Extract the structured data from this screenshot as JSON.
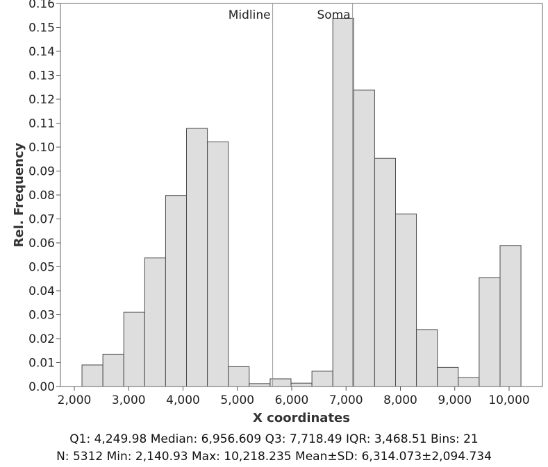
{
  "chart_data": {
    "type": "bar",
    "xlabel": "X coordinates",
    "ylabel": "Rel. Frequency",
    "xlim": [
      2140.93,
      10218.235
    ],
    "ylim": [
      0,
      0.16
    ],
    "x_ticks": [
      2000,
      3000,
      4000,
      5000,
      6000,
      7000,
      8000,
      9000,
      10000
    ],
    "x_tick_labels": [
      "2,000",
      "3,000",
      "4,000",
      "5,000",
      "6,000",
      "7,000",
      "8,000",
      "9,000",
      "10,000"
    ],
    "y_ticks": [
      0.0,
      0.01,
      0.02,
      0.03,
      0.04,
      0.05,
      0.06,
      0.07,
      0.08,
      0.09,
      0.1,
      0.11,
      0.12,
      0.13,
      0.14,
      0.15,
      0.16
    ],
    "y_tick_labels": [
      "0.00",
      "0.01",
      "0.02",
      "0.03",
      "0.04",
      "0.05",
      "0.06",
      "0.07",
      "0.08",
      "0.09",
      "0.10",
      "0.11",
      "0.12",
      "0.13",
      "0.14",
      "0.15",
      "0.16"
    ],
    "bins": 21,
    "bin_start": 2140.93,
    "bin_end": 10218.235,
    "values": [
      0.009,
      0.0135,
      0.031,
      0.0537,
      0.0798,
      0.1078,
      0.1022,
      0.0083,
      0.0012,
      0.0032,
      0.0014,
      0.0064,
      0.1538,
      0.1238,
      0.0953,
      0.0721,
      0.0238,
      0.008,
      0.0037,
      0.0455,
      0.0589
    ],
    "bar_fill": "#dedede",
    "bar_stroke": "#4a4a4a",
    "reference_lines": [
      {
        "label": "Midline",
        "x": 5650
      },
      {
        "label": "Soma",
        "x": 7120
      }
    ],
    "grid": false
  },
  "stats": {
    "line1": "Q1: 4,249.98  Median: 6,956.609  Q3: 7,718.49  IQR: 3,468.51  Bins: 21",
    "line2": "N: 5312  Min: 2,140.93  Max: 10,218.235  Mean±SD: 6,314.073±2,094.734"
  }
}
